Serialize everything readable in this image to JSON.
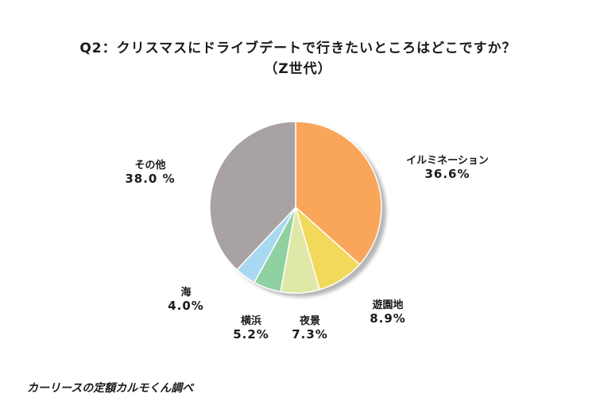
{
  "header": {
    "title_line1": "Q2：クリスマスにドライブデートで行きたいところはどこですか？",
    "title_line2": "（Z世代）"
  },
  "source": "カーリースの定額カルモくん調べ",
  "chart_data": {
    "type": "pie",
    "title": "Q2：クリスマスにドライブデートで行きたいところはどこですか？（Z世代）",
    "start": "12 o'clock, clockwise",
    "slices": [
      {
        "label": "イルミネーション",
        "value": 36.6,
        "value_text": "36.6%",
        "color": "#f9a65a"
      },
      {
        "label": "遊園地",
        "value": 8.9,
        "value_text": "8.9%",
        "color": "#f2d95c"
      },
      {
        "label": "夜景",
        "value": 7.3,
        "value_text": "7.3%",
        "color": "#dfe8a6"
      },
      {
        "label": "横浜",
        "value": 5.2,
        "value_text": "5.2%",
        "color": "#8fd1a0"
      },
      {
        "label": "海",
        "value": 4.0,
        "value_text": "4.0%",
        "color": "#a9d8f1"
      },
      {
        "label": "その他",
        "value": 38.0,
        "value_text": "38.0 %",
        "color": "#a9a2a2"
      }
    ]
  }
}
